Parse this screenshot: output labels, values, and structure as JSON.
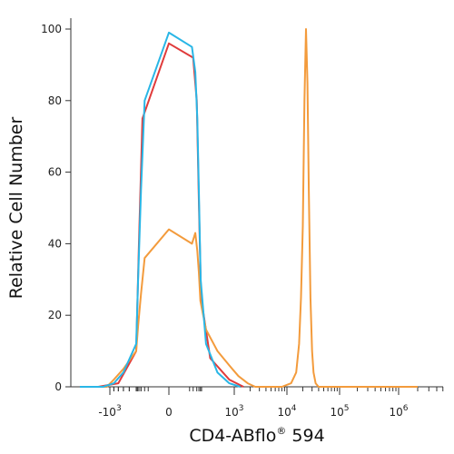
{
  "chart_data": {
    "type": "line",
    "xlabel_main": "CD4-ABflo",
    "xlabel_sup": "®",
    "xlabel_tail": " 594",
    "ylabel": "Relative Cell Number",
    "ylim": [
      0,
      100
    ],
    "x_scale": "biexponential",
    "y_ticks": [
      "0",
      "20",
      "40",
      "60",
      "80",
      "100"
    ],
    "x_tick_labels": [
      {
        "base": "-10",
        "exp": "3",
        "value": -1000
      },
      {
        "base": "0",
        "exp": "",
        "value": 0
      },
      {
        "base": "10",
        "exp": "3",
        "value": 1000
      },
      {
        "base": "10",
        "exp": "4",
        "value": 10000
      },
      {
        "base": "10",
        "exp": "5",
        "value": 100000
      },
      {
        "base": "10",
        "exp": "6",
        "value": 1000000
      }
    ],
    "series": [
      {
        "color": "#e03b3b",
        "points": [
          [
            -2000,
            0
          ],
          [
            -800,
            1
          ],
          [
            -500,
            10
          ],
          [
            -300,
            40
          ],
          [
            -150,
            75
          ],
          [
            0,
            96
          ],
          [
            100,
            92
          ],
          [
            200,
            80
          ],
          [
            300,
            52
          ],
          [
            450,
            25
          ],
          [
            600,
            8
          ],
          [
            900,
            2
          ],
          [
            1500,
            0
          ]
        ]
      },
      {
        "color": "#f39b3c",
        "points": [
          [
            -6000,
            0
          ],
          [
            -1200,
            0
          ],
          [
            -900,
            2
          ],
          [
            -700,
            5
          ],
          [
            -500,
            10
          ],
          [
            -350,
            17
          ],
          [
            -200,
            26
          ],
          [
            -100,
            36
          ],
          [
            0,
            44
          ],
          [
            80,
            40
          ],
          [
            150,
            43
          ],
          [
            220,
            38
          ],
          [
            300,
            32
          ],
          [
            400,
            24
          ],
          [
            550,
            16
          ],
          [
            700,
            10
          ],
          [
            900,
            6
          ],
          [
            1200,
            3
          ],
          [
            1800,
            1
          ],
          [
            2500,
            0
          ],
          [
            8000,
            0
          ],
          [
            12000,
            1
          ],
          [
            15000,
            4
          ],
          [
            17000,
            12
          ],
          [
            18500,
            25
          ],
          [
            20000,
            45
          ],
          [
            21500,
            80
          ],
          [
            23000,
            100
          ],
          [
            24500,
            85
          ],
          [
            26000,
            55
          ],
          [
            28000,
            25
          ],
          [
            30000,
            10
          ],
          [
            32000,
            4
          ],
          [
            35000,
            1
          ],
          [
            40000,
            0
          ],
          [
            2000000,
            0
          ]
        ]
      },
      {
        "color": "#29b6e6",
        "points": [
          [
            -6000,
            0
          ],
          [
            -1500,
            0
          ],
          [
            -900,
            1
          ],
          [
            -700,
            4
          ],
          [
            -500,
            12
          ],
          [
            -350,
            30
          ],
          [
            -200,
            55
          ],
          [
            -100,
            80
          ],
          [
            0,
            99
          ],
          [
            80,
            95
          ],
          [
            150,
            88
          ],
          [
            220,
            75
          ],
          [
            300,
            55
          ],
          [
            420,
            30
          ],
          [
            550,
            12
          ],
          [
            700,
            4
          ],
          [
            900,
            1
          ],
          [
            1300,
            0
          ]
        ]
      }
    ]
  }
}
